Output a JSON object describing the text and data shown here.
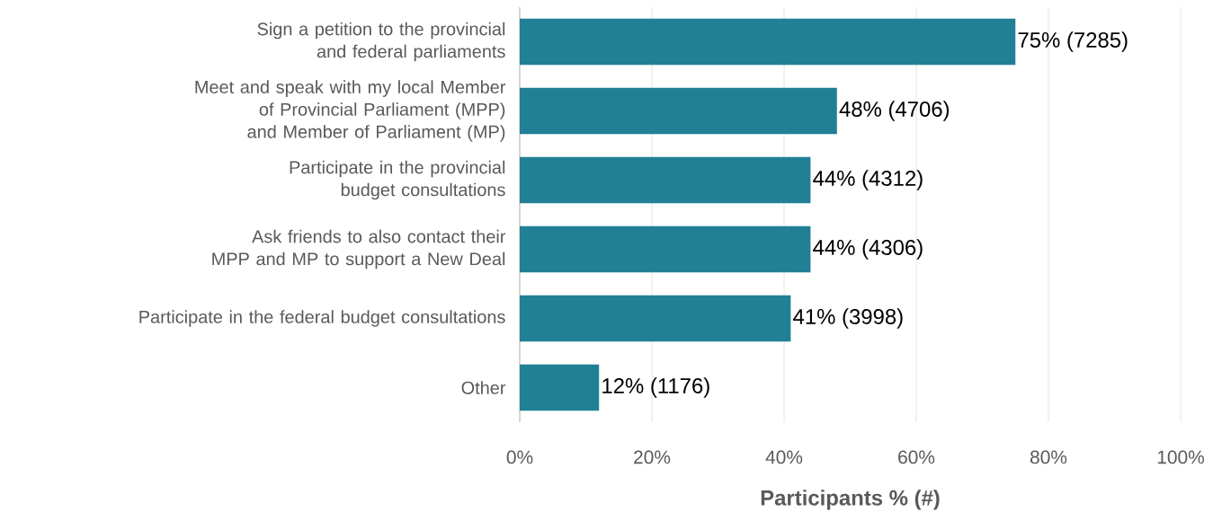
{
  "chart_data": {
    "type": "bar",
    "orientation": "horizontal",
    "categories": [
      "Sign a petition to the provincial and federal parliaments",
      "Meet and speak with my local Member of Provincial Parliament (MPP) and Member of Parliament (MP)",
      "Participate in the provincial budget consultations",
      "Ask friends to also contact their MPP and MP to support a New Deal",
      "Participate in the federal budget consultations",
      "Other"
    ],
    "values": [
      75,
      48,
      44,
      44,
      41,
      12
    ],
    "value_labels": [
      "75% (7285)",
      "48% (4706)",
      "44% (4312)",
      "44% (4306)",
      "41% (3998)",
      "12% (1176)"
    ],
    "color": "#218096",
    "xlim": [
      0,
      100
    ],
    "xticks": [
      {
        "value": 0,
        "label": "0%"
      },
      {
        "value": 20,
        "label": "20%"
      },
      {
        "value": 40,
        "label": "40%"
      },
      {
        "value": 60,
        "label": "60%"
      },
      {
        "value": 80,
        "label": "80%"
      },
      {
        "value": 100,
        "label": "100%"
      }
    ],
    "xlabel": "Participants % (#)",
    "grid": "x"
  }
}
